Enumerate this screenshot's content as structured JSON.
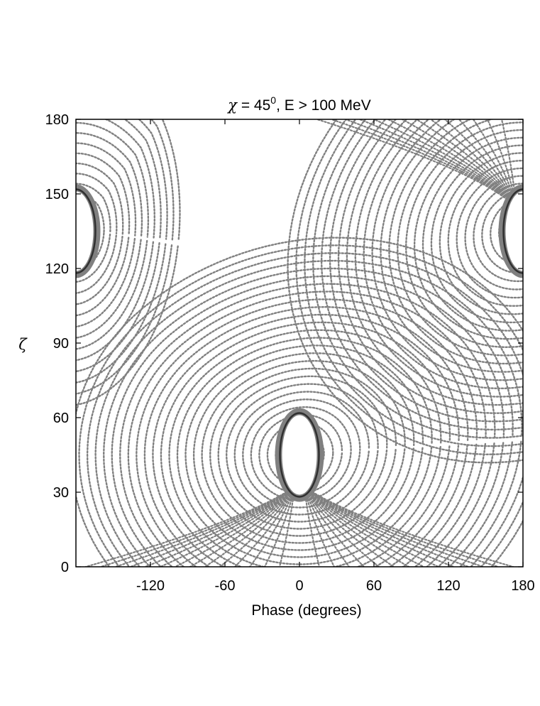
{
  "chart_data": {
    "type": "scatter",
    "title": {
      "chi_symbol": "χ",
      "chi_value": " = 45",
      "chi_superscript": "0",
      "energy_part": ", E > 100 MeV"
    },
    "xlabel": "Phase (degrees)",
    "ylabel": "ζ",
    "xlim": [
      -180,
      180
    ],
    "ylim": [
      0,
      180
    ],
    "xticks": [
      -120,
      -60,
      0,
      60,
      120,
      180
    ],
    "yticks": [
      0,
      30,
      60,
      90,
      120,
      150,
      180
    ],
    "x_tick_labels": [
      "-120",
      "-60",
      "0",
      "60",
      "120",
      "180"
    ],
    "y_tick_labels": [
      "0",
      "30",
      "60",
      "90",
      "120",
      "150",
      "180"
    ],
    "grid": false,
    "marker_color": "#808080",
    "dark_ring_color": "#303030",
    "holes": [
      {
        "phase": 0,
        "zeta": 45,
        "phase_halfwidth": 14,
        "zeta_halfheight": 16
      },
      {
        "phase": 180,
        "zeta": 135,
        "phase_halfwidth": 14,
        "zeta_halfheight": 16
      },
      {
        "phase": -180,
        "zeta": 135,
        "phase_halfwidth": 14,
        "zeta_halfheight": 16
      }
    ]
  }
}
